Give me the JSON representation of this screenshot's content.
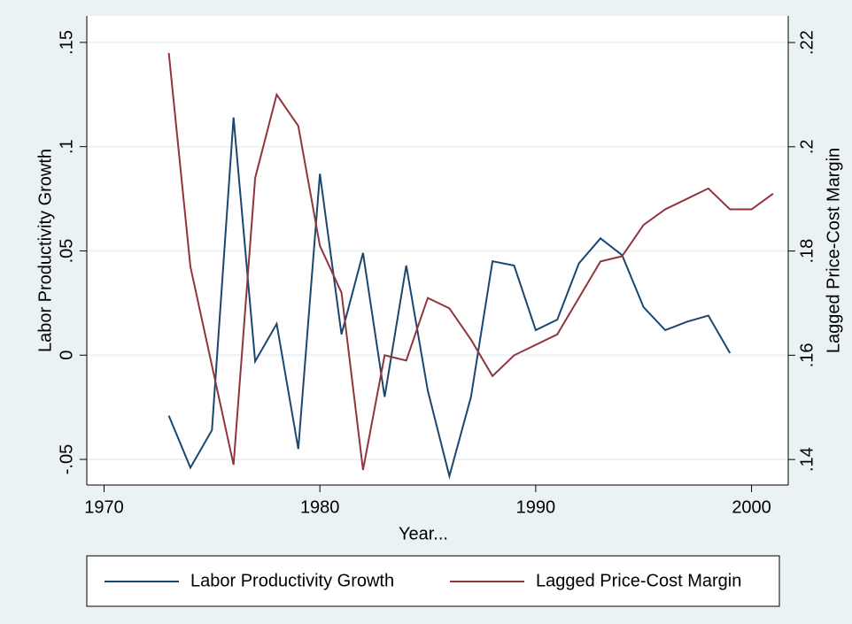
{
  "chart_data": {
    "type": "line",
    "x_label": "Year...",
    "y_label": "Labor Productivity Growth",
    "y2_label": "Lagged Price-Cost Margin",
    "xlim": [
      1969.2,
      2001.7
    ],
    "xticks": [
      1970,
      1980,
      1990,
      2000
    ],
    "ylim": [
      -0.0623,
      0.1627
    ],
    "yticks": [
      {
        "value": -0.05,
        "label": "-.05"
      },
      0,
      {
        "value": 0.05,
        "label": ".05"
      },
      {
        "value": 0.1,
        "label": ".1"
      },
      {
        "value": 0.15,
        "label": ".15"
      }
    ],
    "y2lim": [
      0.1351,
      0.2251
    ],
    "y2ticks": [
      {
        "value": 0.14,
        "label": ".14"
      },
      {
        "value": 0.16,
        "label": ".16"
      },
      {
        "value": 0.18,
        "label": ".18"
      },
      {
        "value": 0.2,
        "label": ".2"
      },
      {
        "value": 0.22,
        "label": ".22"
      }
    ],
    "grid": true,
    "legend": "bottom",
    "series": [
      {
        "name": "Labor Productivity Growth",
        "color": "#1a476f",
        "x": [
          1973,
          1974,
          1975,
          1976,
          1977,
          1978,
          1979,
          1980,
          1981,
          1982,
          1983,
          1984,
          1985,
          1986,
          1987,
          1988,
          1989,
          1990,
          1991,
          1992,
          1993,
          1994,
          1995,
          1996,
          1997,
          1998,
          1999
        ],
        "values": [
          -0.029,
          -0.054,
          -0.036,
          0.114,
          -0.003,
          0.015,
          -0.045,
          0.087,
          0.01,
          0.049,
          -0.02,
          0.043,
          -0.017,
          -0.058,
          -0.02,
          0.045,
          0.043,
          0.012,
          0.017,
          0.044,
          0.056,
          0.048,
          0.023,
          0.012,
          0.016,
          0.019,
          0.001
        ]
      },
      {
        "name": "Lagged Price-Cost Margin",
        "color": "#90353b",
        "axis": "y2",
        "x": [
          1973,
          1974,
          1975,
          1976,
          1977,
          1978,
          1979,
          1980,
          1981,
          1982,
          1983,
          1984,
          1985,
          1986,
          1987,
          1988,
          1989,
          1990,
          1991,
          1992,
          1993,
          1994,
          1995,
          1996,
          1997,
          1998,
          1999,
          2000,
          2001
        ],
        "values": [
          0.218,
          0.177,
          0.158,
          0.139,
          0.194,
          0.21,
          0.204,
          0.181,
          0.172,
          0.138,
          0.16,
          0.159,
          0.171,
          0.169,
          0.163,
          0.156,
          0.16,
          0.162,
          0.164,
          0.171,
          0.178,
          0.179,
          0.185,
          0.188,
          0.19,
          0.192,
          0.188,
          0.188,
          0.191
        ]
      }
    ]
  }
}
